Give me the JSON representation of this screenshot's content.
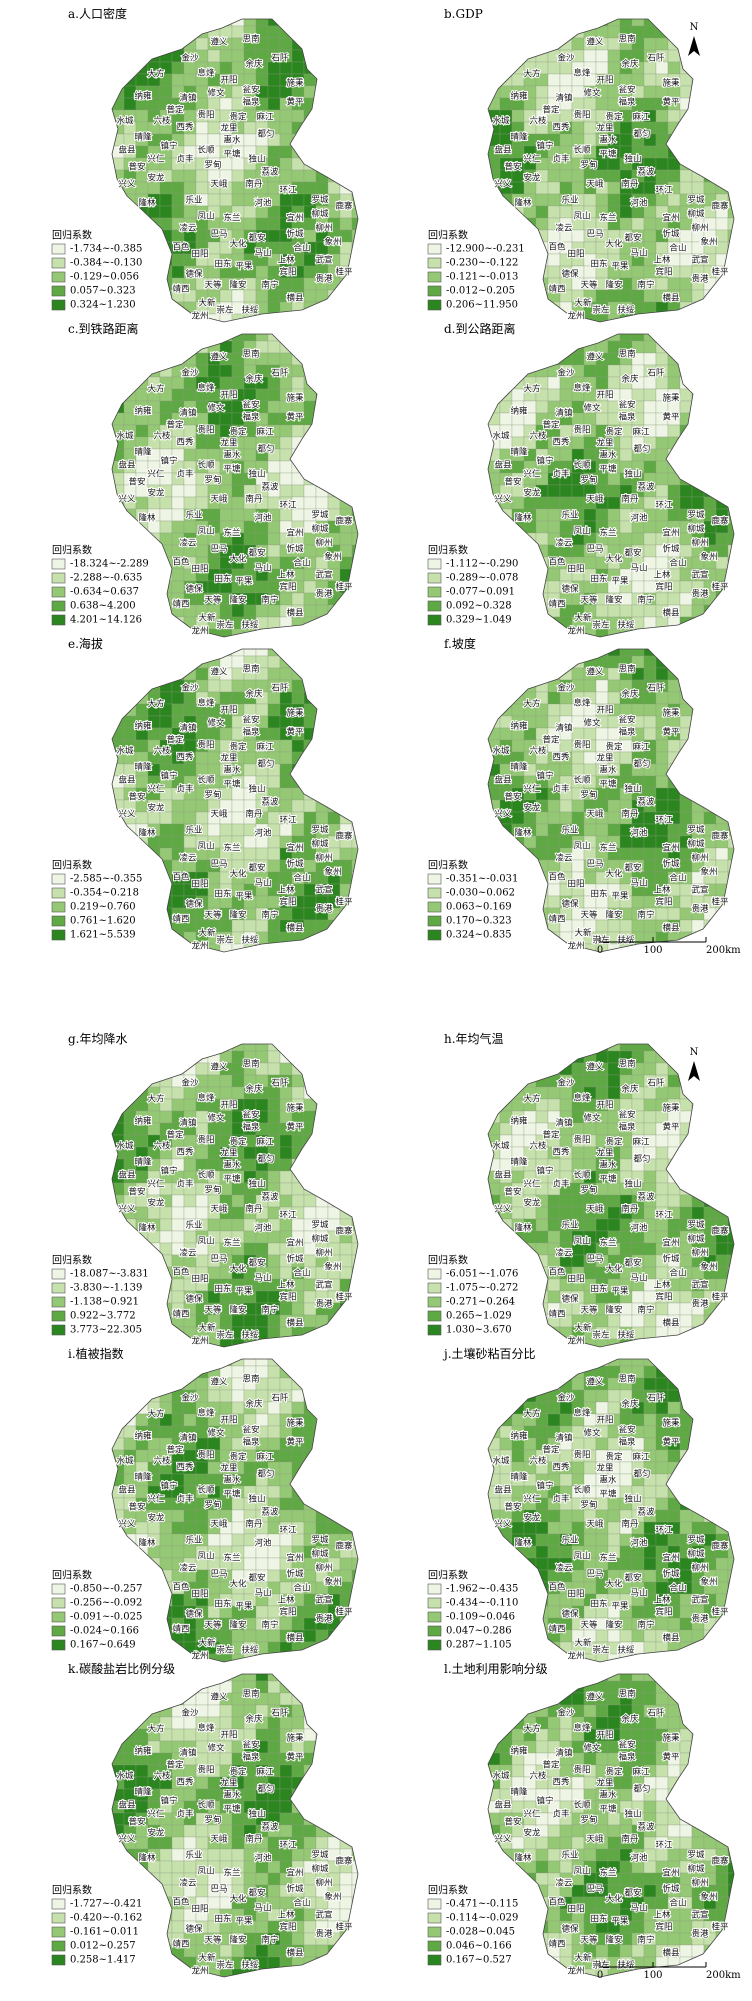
{
  "panels": [
    {
      "title": "a.人口密度",
      "legend_title": "回归系数",
      "classes": [
        "-1.734~-0.385",
        "-0.384~-0.130",
        "-0.129~0.056",
        "0.057~0.323",
        "0.324~1.230"
      ]
    },
    {
      "title": "b.GDP",
      "legend_title": "回归系数",
      "classes": [
        "-12.900~-0.231",
        "-0.230~-0.122",
        "-0.121~-0.013",
        "-0.012~0.205",
        "0.206~11.950"
      ]
    },
    {
      "title": "c.到铁路距离",
      "legend_title": "回归系数",
      "classes": [
        "-18.324~-2.289",
        "-2.288~-0.635",
        "-0.634~0.637",
        "0.638~4.200",
        "4.201~14.126"
      ]
    },
    {
      "title": "d.到公路距离",
      "legend_title": "回归系数",
      "classes": [
        "-1.112~-0.290",
        "-0.289~-0.078",
        "-0.077~0.091",
        "0.092~0.328",
        "0.329~1.049"
      ]
    },
    {
      "title": "e.海拔",
      "legend_title": "回归系数",
      "classes": [
        "-2.585~-0.355",
        "-0.354~0.218",
        "0.219~0.760",
        "0.761~1.620",
        "1.621~5.539"
      ]
    },
    {
      "title": "f.坡度",
      "legend_title": "回归系数",
      "classes": [
        "-0.351~-0.031",
        "-0.030~0.062",
        "0.063~0.169",
        "0.170~0.323",
        "0.324~0.835"
      ]
    },
    {
      "title": "g.年均降水",
      "legend_title": "回归系数",
      "classes": [
        "-18.087~-3.831",
        "-3.830~-1.139",
        "-1.138~0.921",
        "0.922~3.772",
        "3.773~22.305"
      ]
    },
    {
      "title": "h.年均气温",
      "legend_title": "回归系数",
      "classes": [
        "-6.051~-1.076",
        "-1.075~-0.272",
        "-0.271~0.264",
        "0.265~1.029",
        "1.030~3.670"
      ]
    },
    {
      "title": "i.植被指数",
      "legend_title": "回归系数",
      "classes": [
        "-0.850~-0.257",
        "-0.256~-0.092",
        "-0.091~-0.025",
        "-0.024~0.166",
        "0.167~0.649"
      ]
    },
    {
      "title": "j.土壤砂粘百分比",
      "legend_title": "回归系数",
      "classes": [
        "-1.962~-0.435",
        "-0.434~-0.110",
        "-0.109~0.046",
        "0.047~0.286",
        "0.287~1.105"
      ]
    },
    {
      "title": "k.碳酸盐岩比例分级",
      "legend_title": "回归系数",
      "classes": [
        "-1.727~-0.421",
        "-0.420~-0.162",
        "-0.161~0.011",
        "0.012~0.257",
        "0.258~1.417"
      ]
    },
    {
      "title": "l.土地利用影响分级",
      "legend_title": "回归系数",
      "classes": [
        "-0.471~-0.115",
        "-0.114~-0.029",
        "-0.028~0.045",
        "0.046~0.166",
        "0.167~0.527"
      ]
    }
  ],
  "place_names": [
    "思南",
    "遵义",
    "金沙",
    "余庆",
    "石阡",
    "大方",
    "息烽",
    "开阳",
    "瓮安",
    "施秉",
    "纳雍",
    "清镇",
    "修文",
    "福泉",
    "黄平",
    "水城",
    "六枝",
    "普定",
    "贵阳",
    "贵定",
    "麻江",
    "晴隆",
    "西秀",
    "龙里",
    "都匀",
    "盘县",
    "镇宁",
    "惠水",
    "兴仁",
    "长顺",
    "平塘",
    "普安",
    "贞丰",
    "罗甸",
    "独山",
    "兴义",
    "安龙",
    "荔波",
    "隆林",
    "天峨",
    "南丹",
    "环江",
    "罗城",
    "乐业",
    "凤山",
    "东兰",
    "河池",
    "宜州",
    "柳城",
    "鹿寨",
    "柳州",
    "凌云",
    "巴马",
    "都安",
    "忻城",
    "象州",
    "百色",
    "大化",
    "田阳",
    "马山",
    "上林",
    "武宣",
    "田东",
    "平果",
    "宾阳",
    "德保",
    "靖西",
    "天等",
    "隆安",
    "南宁",
    "横县",
    "贵港",
    "桂平",
    "大新",
    "崇左",
    "扶绥",
    "龙州",
    "合山"
  ],
  "north_label": "N",
  "scale_labels": [
    "0",
    "100",
    "200km"
  ]
}
